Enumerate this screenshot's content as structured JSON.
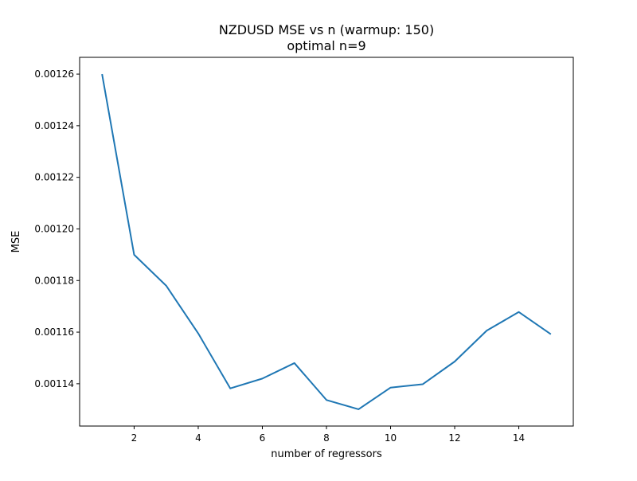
{
  "chart_data": {
    "type": "line",
    "title": "NZDUSD MSE vs n (warmup: 150)",
    "subtitle": "optimal n=9",
    "xlabel": "number of regressors",
    "ylabel": "MSE",
    "x": [
      1,
      2,
      3,
      4,
      5,
      6,
      7,
      8,
      9,
      10,
      11,
      12,
      13,
      14,
      15
    ],
    "series": [
      {
        "values": [
          0.00126,
          0.00119,
          0.001178,
          0.0011595,
          0.0011382,
          0.001142,
          0.001148,
          0.0011337,
          0.0011301,
          0.0011385,
          0.0011398,
          0.0011486,
          0.0011606,
          0.0011678,
          0.0011592
        ],
        "color": "#1f77b4"
      }
    ],
    "xticks": [
      2,
      4,
      6,
      8,
      10,
      12,
      14
    ],
    "xtick_labels": [
      "2",
      "4",
      "6",
      "8",
      "10",
      "12",
      "14"
    ],
    "yticks": [
      0.00114,
      0.00116,
      0.00118,
      0.0012,
      0.00122,
      0.00124,
      0.00126
    ],
    "ytick_labels": [
      "0.00114",
      "0.00116",
      "0.00118",
      "0.00120",
      "0.00122",
      "0.00124",
      "0.00126"
    ],
    "xlim": [
      0.3,
      15.7
    ],
    "ylim": [
      0.0011236,
      0.0012665
    ],
    "grid": false,
    "legend": false
  }
}
